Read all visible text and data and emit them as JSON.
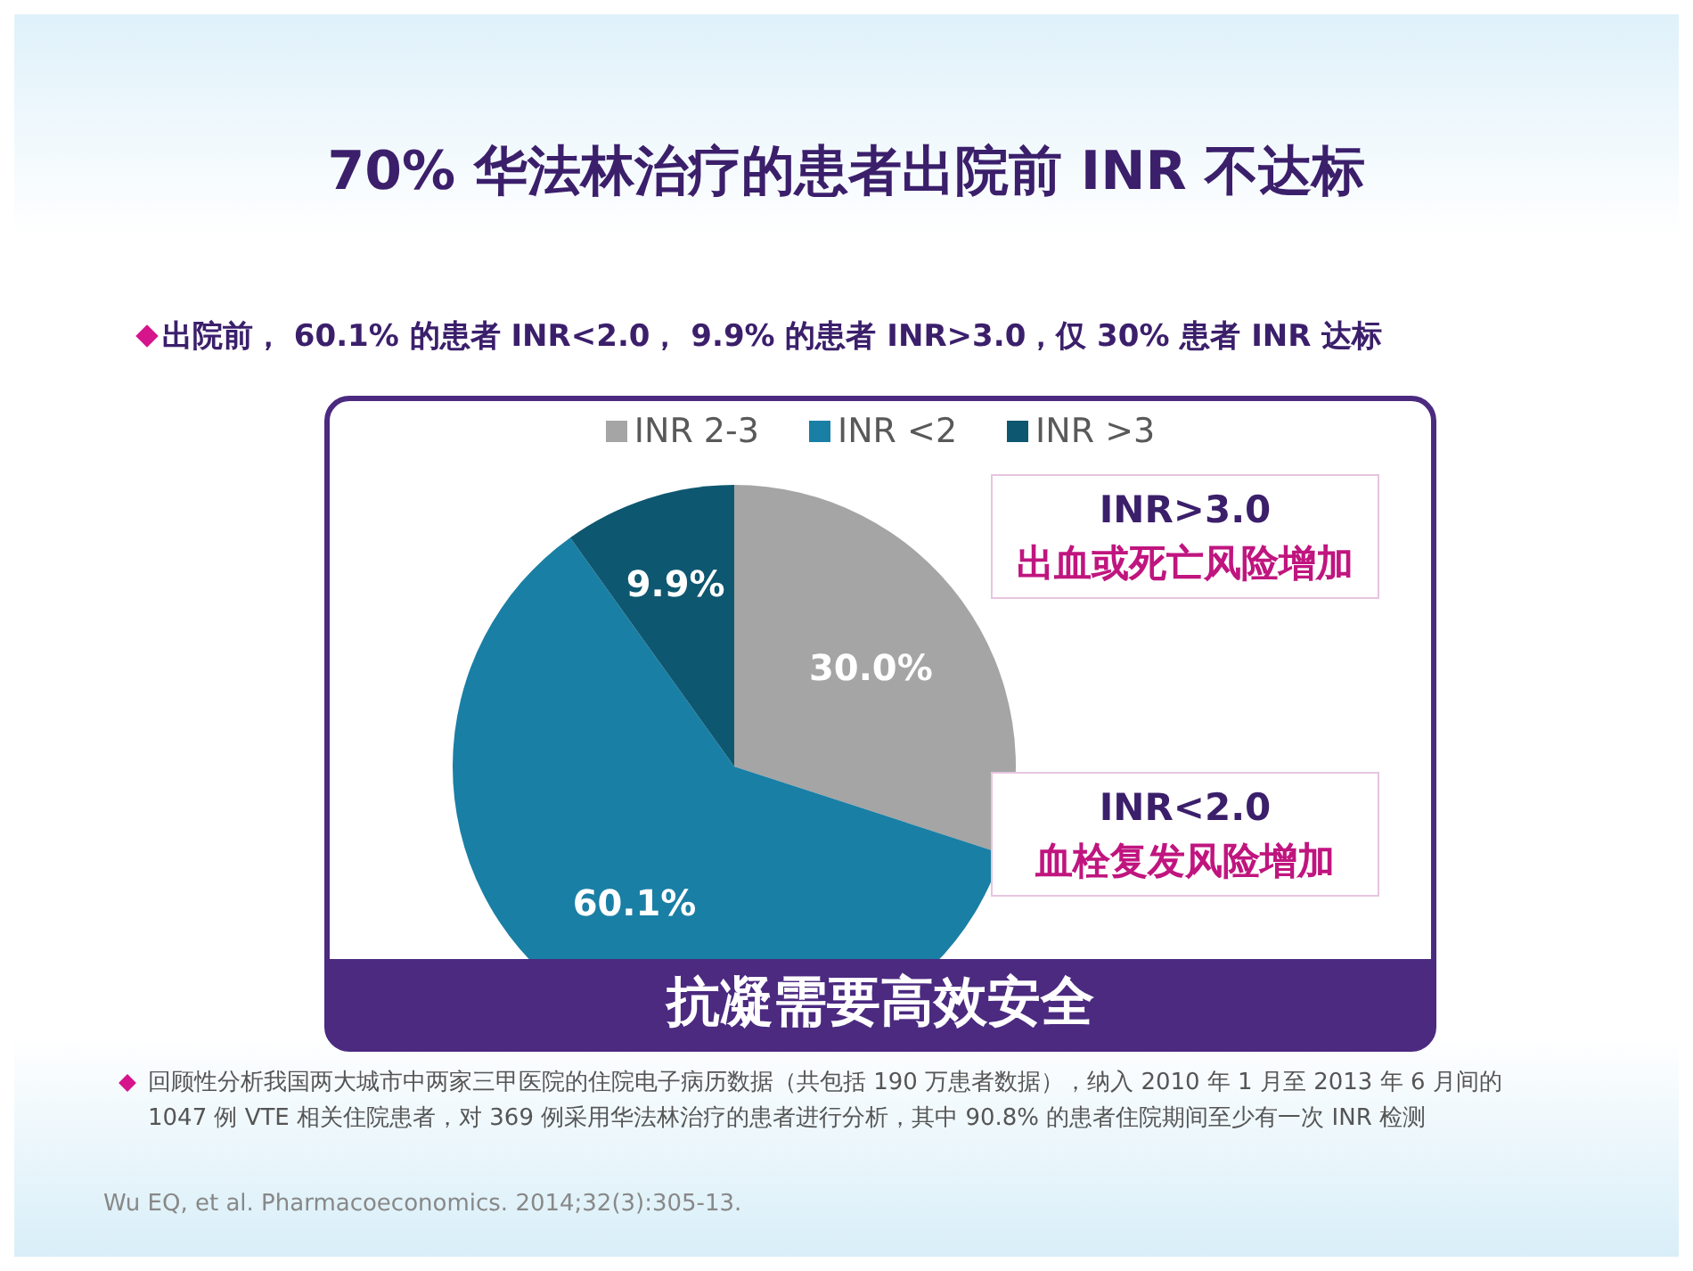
{
  "chart_data": {
    "type": "pie",
    "title": "70% 华法林治疗的患者出院前 INR 不达标",
    "subtitle": "出院前， 60.1% 的患者 INR<2.0， 9.9% 的患者 INR>3.0，仅 30% 患者 INR 达标",
    "categories": [
      "INR 2-3",
      "INR <2",
      "INR >3"
    ],
    "values": [
      30.0,
      60.1,
      9.9
    ],
    "colors": [
      "#a5a5a5",
      "#1a7fa5",
      "#0e5770"
    ],
    "value_labels": [
      "30.0%",
      "60.1%",
      "9.9%"
    ],
    "legend": "top",
    "annotations": [
      "INR>3.0",
      "出血或死亡风险增加",
      "INR<2.0",
      "血栓复发风险增加",
      "抗凝需要高效安全",
      "回顾性分析我国两大城市中两家三甲医院的住院电子病历数据（共包括 190 万患者数据），纳入 2010 年 1 月至 2013 年 6 月间的 1047 例 VTE 相关住院患者，对 369 例采用华法林治疗的患者进行分析，其中 90.8% 的患者住院期间至少有一次 INR 检测",
      "Wu EQ, et al. Pharmacoeconomics. 2014;32(3):305-13."
    ]
  }
}
